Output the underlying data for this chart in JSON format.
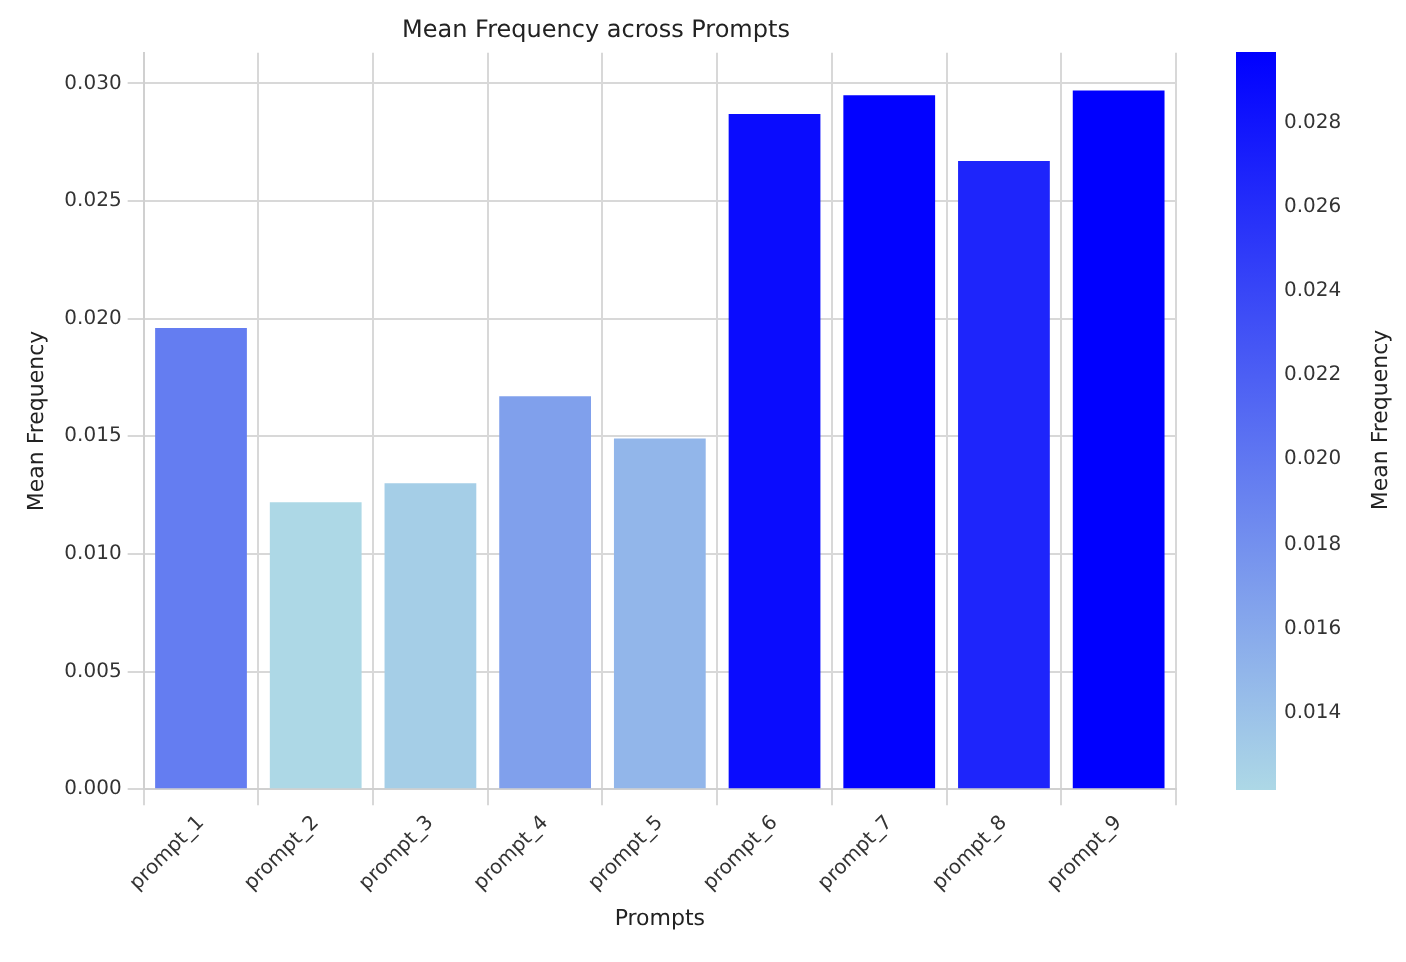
{
  "chart_data": {
    "type": "bar",
    "title": "Mean Frequency across Prompts",
    "xlabel": "Prompts",
    "ylabel": "Mean Frequency",
    "clabel": "Mean Frequency",
    "categories": [
      "prompt_1",
      "prompt_2",
      "prompt_3",
      "prompt_4",
      "prompt_5",
      "prompt_6",
      "prompt_7",
      "prompt_8",
      "prompt_9"
    ],
    "values": [
      0.0196,
      0.0122,
      0.013,
      0.0167,
      0.0149,
      0.0287,
      0.0295,
      0.0267,
      0.0297
    ],
    "colors": [
      "#647df1",
      "#add8e6",
      "#a5cee7",
      "#80a0ec",
      "#92b6ea",
      "#0a0cfe",
      "#0202ff",
      "#1e25fb",
      "#0000ff"
    ],
    "ylim": [
      0,
      0.0313
    ],
    "yticks": [
      {
        "value": 0,
        "label": "0.000"
      },
      {
        "value": 0.005,
        "label": "0.005"
      },
      {
        "value": 0.01,
        "label": "0.010"
      },
      {
        "value": 0.015,
        "label": "0.015"
      },
      {
        "value": 0.02,
        "label": "0.020"
      },
      {
        "value": 0.025,
        "label": "0.025"
      },
      {
        "value": 0.03,
        "label": "0.030"
      }
    ],
    "clim": [
      0.0122,
      0.0297
    ],
    "cticks": [
      0.014,
      0.016,
      0.018,
      {
        "value": 0.02,
        "label": "0.020"
      },
      0.022,
      0.024,
      0.026,
      0.028
    ],
    "grid": true,
    "legend": false
  }
}
